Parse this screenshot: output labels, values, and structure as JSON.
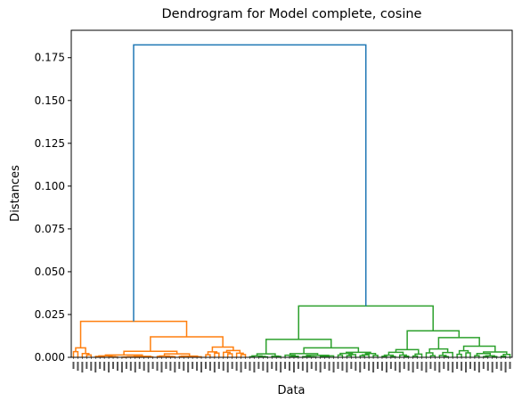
{
  "chart_data": {
    "type": "dendrogram",
    "title": "Dendrogram for Model complete, cosine",
    "xlabel": "Data",
    "ylabel": "Distances",
    "ylim": [
      0,
      0.191
    ],
    "yticks": [
      "0.000",
      "0.025",
      "0.050",
      "0.075",
      "0.100",
      "0.125",
      "0.150",
      "0.175"
    ],
    "ytick_values": [
      0,
      0.025,
      0.05,
      0.075,
      0.1,
      0.125,
      0.15,
      0.175
    ],
    "n_leaves": 100,
    "leaf_labels_legible": false,
    "grid": false,
    "colors": {
      "root": "#1f77b4",
      "cluster_1": "#ff7f0e",
      "cluster_2": "#2ca02c"
    },
    "clusters": [
      {
        "name": "cluster_1",
        "color": "#ff7f0e",
        "leaf_count": 40,
        "merge_height": 0.021,
        "subclusters": [
          {
            "leaf_count": 5,
            "merge_height": 0.0055
          },
          {
            "leaf_count": 35,
            "merge_height": 0.012,
            "parts": [
              {
                "leaf_count": 25,
                "merge_height": 0.0035
              },
              {
                "leaf_count": 10,
                "merge_height": 0.006
              }
            ]
          }
        ]
      },
      {
        "name": "cluster_2",
        "color": "#2ca02c",
        "leaf_count": 60,
        "merge_height": 0.03,
        "subclusters": [
          {
            "leaf_count": 30,
            "merge_height": 0.0105,
            "parts": [
              {
                "leaf_count": 8,
                "merge_height": 0.002
              },
              {
                "leaf_count": 22,
                "merge_height": 0.0055
              }
            ]
          },
          {
            "leaf_count": 30,
            "merge_height": 0.0155,
            "parts": [
              {
                "leaf_count": 10,
                "merge_height": 0.0045
              },
              {
                "leaf_count": 20,
                "merge_height": 0.0115
              }
            ]
          }
        ]
      }
    ],
    "root_merge_height": 0.1825
  }
}
